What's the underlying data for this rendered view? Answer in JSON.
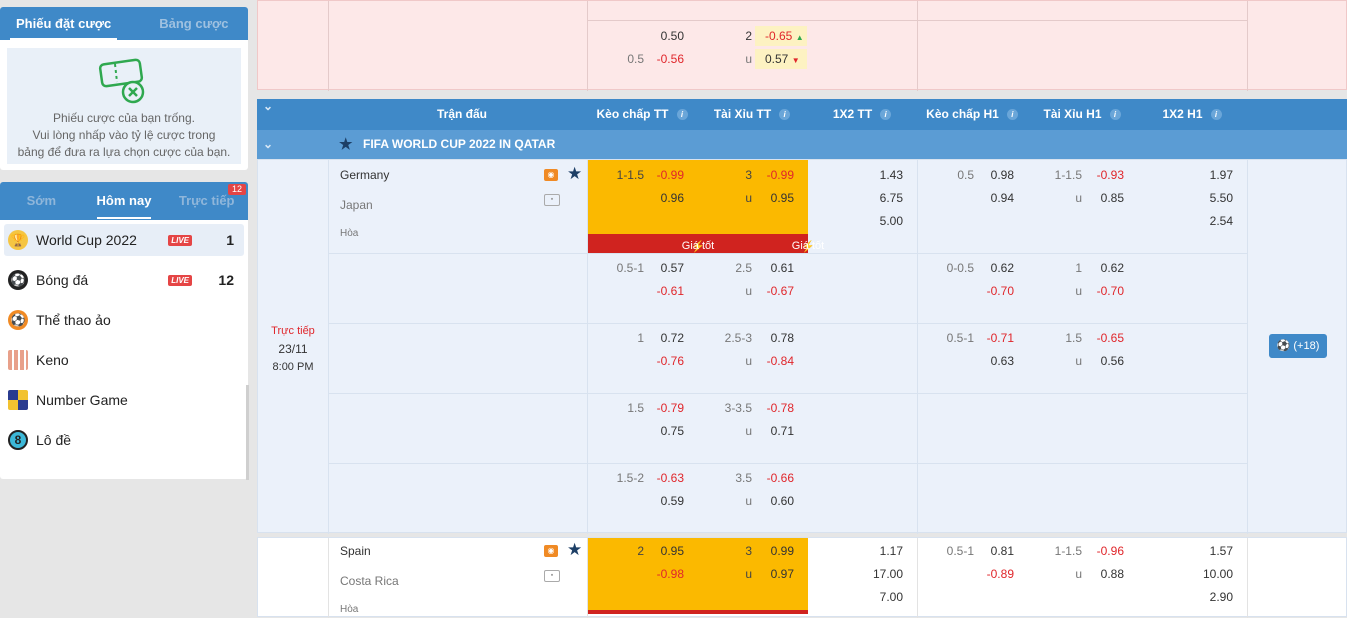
{
  "betslip": {
    "tab_active": "Phiếu đặt cược",
    "tab_inactive": "Bảng cược",
    "empty_line1": "Phiếu cược của bạn trống.",
    "empty_line2": "Vui lòng nhấp vào tỷ lệ cược trong",
    "empty_line3": "bảng để đưa ra lựa chọn cược của bạn."
  },
  "sports_tabs": {
    "early": "Sớm",
    "today": "Hôm nay",
    "live": "Trực tiếp",
    "live_count": "12"
  },
  "sports": [
    {
      "label": "World Cup 2022",
      "live": "LIVE",
      "count": "1",
      "icon": "trophy-icon"
    },
    {
      "label": "Bóng đá",
      "live": "LIVE",
      "count": "12",
      "icon": "soccer-ball-icon"
    },
    {
      "label": "Thể thao ảo",
      "icon": "virtual-sports-icon"
    },
    {
      "label": "Keno",
      "icon": "keno-icon"
    },
    {
      "label": "Number Game",
      "icon": "number-game-icon"
    },
    {
      "label": "Lô đề",
      "icon": "lottery-ball-icon"
    }
  ],
  "prev": {
    "a1": "0.50",
    "b1": "2",
    "c1": "-0.65",
    "a2h": "0.5",
    "a2": "-0.56",
    "b2": "u",
    "c2": "0.57"
  },
  "header": {
    "match": "Trận đấu",
    "hdp_ft": "Kèo chấp TT",
    "ou_ft": "Tài Xỉu TT",
    "x12_ft": "1X2 TT",
    "hdp_h1": "Kèo chấp H1",
    "ou_h1": "Tài Xỉu H1",
    "x12_h1": "1X2 H1",
    "info": "i"
  },
  "league": "FIFA WORLD CUP 2022 IN QATAR",
  "match1": {
    "status": "Trực tiếp",
    "date": "23/11",
    "time": "8:00 PM",
    "home": "Germany",
    "away": "Japan",
    "draw": "Hòa",
    "good_odds": "Giá tốt",
    "rows": [
      {
        "hdp": "1-1.5",
        "hdp_h": "-0.99",
        "hdp_a": "0.96",
        "ou": "3",
        "ou_o": "-0.99",
        "ou_u_lbl": "u",
        "ou_u": "0.95",
        "x1": "1.43",
        "x2": "6.75",
        "xd": "5.00",
        "h1hdp": "0.5",
        "h1hdp_h": "0.98",
        "h1hdp_a": "0.94",
        "h1ou": "1-1.5",
        "h1ou_o": "-0.93",
        "h1ou_u": "0.85",
        "h1x1": "1.97",
        "h1x2": "5.50",
        "h1xd": "2.54"
      },
      {
        "hdp": "0.5-1",
        "hdp_h": "0.57",
        "hdp_a": "-0.61",
        "ou": "2.5",
        "ou_o": "0.61",
        "ou_u": "-0.67",
        "h1hdp": "0-0.5",
        "h1hdp_h": "0.62",
        "h1hdp_a": "-0.70",
        "h1ou": "1",
        "h1ou_o": "0.62",
        "h1ou_u": "-0.70"
      },
      {
        "hdp": "1",
        "hdp_h": "0.72",
        "hdp_a": "-0.76",
        "ou": "2.5-3",
        "ou_o": "0.78",
        "ou_u": "-0.84",
        "h1hdp": "0.5-1",
        "h1hdp_h": "-0.71",
        "h1hdp_a": "0.63",
        "h1ou": "1.5",
        "h1ou_o": "-0.65",
        "h1ou_u": "0.56"
      },
      {
        "hdp": "1.5",
        "hdp_h": "-0.79",
        "hdp_a": "0.75",
        "ou": "3-3.5",
        "ou_o": "-0.78",
        "ou_u": "0.71"
      },
      {
        "hdp": "1.5-2",
        "hdp_h": "-0.63",
        "hdp_a": "0.59",
        "ou": "3.5",
        "ou_o": "-0.66",
        "ou_u": "0.60"
      }
    ],
    "more": "(+18)"
  },
  "match2": {
    "home": "Spain",
    "away": "Costa Rica",
    "draw": "Hòa",
    "hdp": "2",
    "hdp_h": "0.95",
    "hdp_a": "-0.98",
    "ou": "3",
    "ou_o": "0.99",
    "ou_u": "0.97",
    "x1": "1.17",
    "x2": "17.00",
    "xd": "7.00",
    "h1hdp": "0.5-1",
    "h1hdp_h": "0.81",
    "h1hdp_a": "-0.89",
    "h1ou": "1-1.5",
    "h1ou_o": "-0.96",
    "h1ou_u": "0.88",
    "h1x1": "1.57",
    "h1x2": "10.00",
    "h1xd": "2.90"
  }
}
